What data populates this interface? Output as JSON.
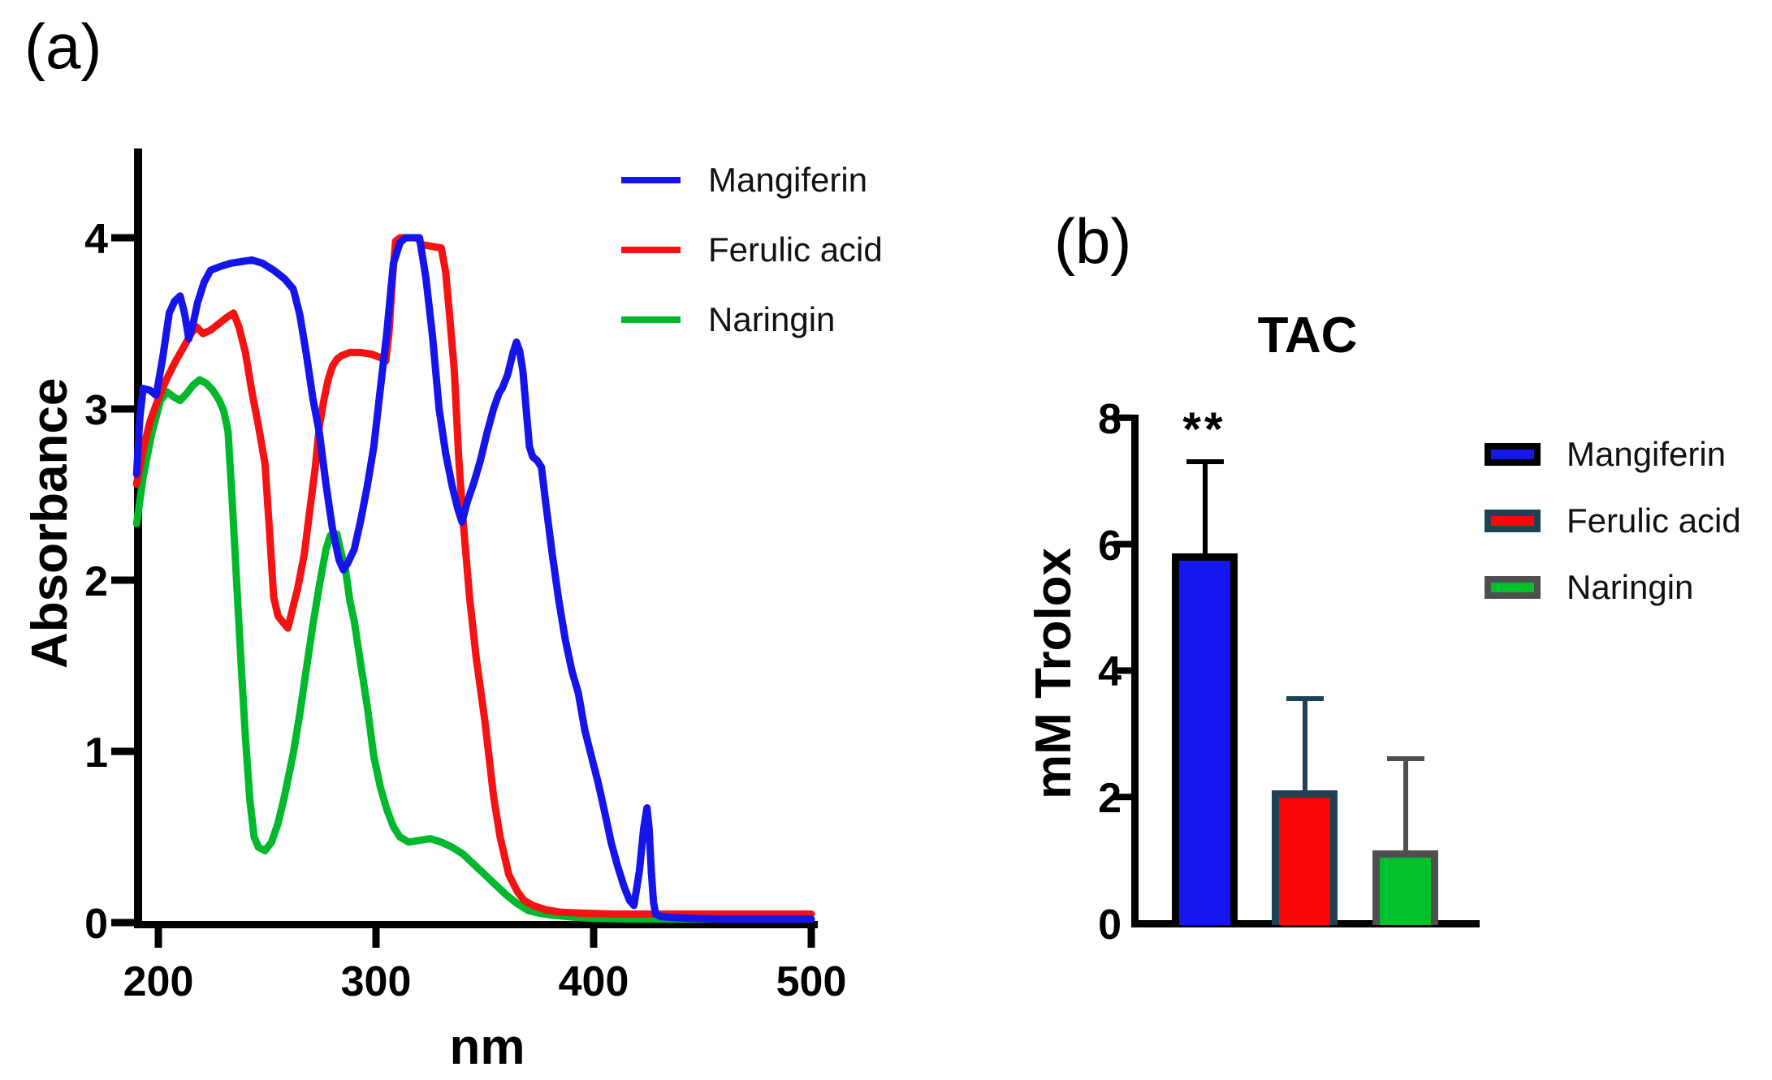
{
  "figure": {
    "panel_a_label": "(a)",
    "panel_b_label": "(b)"
  },
  "chart_data": [
    {
      "type": "line",
      "panel": "a",
      "title": "",
      "xlabel": "nm",
      "ylabel": "Absorbance",
      "xlim": [
        186,
        505
      ],
      "ylim": [
        0,
        4.55
      ],
      "x_ticks": [
        200,
        300,
        400,
        500
      ],
      "y_ticks": [
        0,
        1,
        2,
        3,
        4
      ],
      "grid": false,
      "legend_position": "outside-top-right",
      "series": [
        {
          "name": "Naringin",
          "color": "#00b82b",
          "points": [
            [
              190,
              2.33
            ],
            [
              193,
              2.6
            ],
            [
              197,
              2.86
            ],
            [
              201,
              3.05
            ],
            [
              204,
              3.1
            ],
            [
              207,
              3.07
            ],
            [
              210,
              3.05
            ],
            [
              213,
              3.09
            ],
            [
              216,
              3.14
            ],
            [
              219,
              3.17
            ],
            [
              222,
              3.15
            ],
            [
              225,
              3.11
            ],
            [
              228,
              3.05
            ],
            [
              230,
              2.99
            ],
            [
              232,
              2.87
            ],
            [
              234,
              2.45
            ],
            [
              236,
              1.98
            ],
            [
              238,
              1.52
            ],
            [
              240,
              1.08
            ],
            [
              242,
              0.72
            ],
            [
              244,
              0.5
            ],
            [
              246,
              0.44
            ],
            [
              249,
              0.42
            ],
            [
              252,
              0.47
            ],
            [
              255,
              0.58
            ],
            [
              258,
              0.74
            ],
            [
              262,
              0.99
            ],
            [
              265,
              1.22
            ],
            [
              268,
              1.48
            ],
            [
              271,
              1.74
            ],
            [
              274,
              1.97
            ],
            [
              277,
              2.18
            ],
            [
              279,
              2.26
            ],
            [
              282,
              2.27
            ],
            [
              284,
              2.16
            ],
            [
              286,
              2.06
            ],
            [
              288,
              1.88
            ],
            [
              290,
              1.76
            ],
            [
              293,
              1.51
            ],
            [
              296,
              1.26
            ],
            [
              299,
              0.97
            ],
            [
              302,
              0.79
            ],
            [
              305,
              0.66
            ],
            [
              308,
              0.56
            ],
            [
              311,
              0.5
            ],
            [
              315,
              0.47
            ],
            [
              320,
              0.48
            ],
            [
              325,
              0.49
            ],
            [
              330,
              0.47
            ],
            [
              335,
              0.44
            ],
            [
              340,
              0.4
            ],
            [
              345,
              0.34
            ],
            [
              350,
              0.28
            ],
            [
              355,
              0.22
            ],
            [
              360,
              0.16
            ],
            [
              365,
              0.11
            ],
            [
              370,
              0.07
            ],
            [
              375,
              0.055
            ],
            [
              380,
              0.045
            ],
            [
              390,
              0.032
            ],
            [
              400,
              0.025
            ],
            [
              420,
              0.02
            ],
            [
              450,
              0.02
            ],
            [
              500,
              0.02
            ]
          ]
        },
        {
          "name": "Ferulic acid",
          "color": "#f51212",
          "points": [
            [
              190,
              2.56
            ],
            [
              193,
              2.76
            ],
            [
              196,
              2.92
            ],
            [
              200,
              3.06
            ],
            [
              204,
              3.18
            ],
            [
              208,
              3.28
            ],
            [
              212,
              3.37
            ],
            [
              215,
              3.44
            ],
            [
              217.5,
              3.48
            ],
            [
              220.5,
              3.44
            ],
            [
              224,
              3.46
            ],
            [
              228,
              3.5
            ],
            [
              232,
              3.54
            ],
            [
              234.5,
              3.56
            ],
            [
              237,
              3.48
            ],
            [
              240,
              3.33
            ],
            [
              243,
              3.1
            ],
            [
              246,
              2.9
            ],
            [
              249,
              2.68
            ],
            [
              251,
              2.3
            ],
            [
              253,
              1.9
            ],
            [
              255,
              1.79
            ],
            [
              257.5,
              1.75
            ],
            [
              259.5,
              1.72
            ],
            [
              262,
              1.85
            ],
            [
              264,
              1.95
            ],
            [
              267,
              2.15
            ],
            [
              270,
              2.45
            ],
            [
              272,
              2.65
            ],
            [
              274,
              2.9
            ],
            [
              276,
              3.05
            ],
            [
              278,
              3.17
            ],
            [
              280,
              3.25
            ],
            [
              282,
              3.29
            ],
            [
              284,
              3.31
            ],
            [
              288,
              3.33
            ],
            [
              293,
              3.33
            ],
            [
              298,
              3.32
            ],
            [
              302,
              3.3
            ],
            [
              304.5,
              3.28
            ],
            [
              306,
              3.45
            ],
            [
              307.5,
              3.75
            ],
            [
              309,
              3.98
            ],
            [
              311,
              4.0
            ],
            [
              319,
              4.0
            ],
            [
              321,
              3.96
            ],
            [
              330,
              3.94
            ],
            [
              332,
              3.8
            ],
            [
              334,
              3.52
            ],
            [
              336,
              3.22
            ],
            [
              338,
              2.72
            ],
            [
              340,
              2.35
            ],
            [
              343,
              1.9
            ],
            [
              346,
              1.55
            ],
            [
              350,
              1.18
            ],
            [
              354,
              0.74
            ],
            [
              357,
              0.5
            ],
            [
              361,
              0.28
            ],
            [
              365,
              0.18
            ],
            [
              368,
              0.13
            ],
            [
              372,
              0.1
            ],
            [
              378,
              0.075
            ],
            [
              385,
              0.06
            ],
            [
              395,
              0.055
            ],
            [
              410,
              0.05
            ],
            [
              440,
              0.05
            ],
            [
              470,
              0.05
            ],
            [
              500,
              0.05
            ]
          ]
        },
        {
          "name": "Mangiferin",
          "color": "#1414eb",
          "points": [
            [
              190,
              2.62
            ],
            [
              191.5,
              2.95
            ],
            [
              193,
              3.12
            ],
            [
              196,
              3.11
            ],
            [
              199,
              3.08
            ],
            [
              202,
              3.3
            ],
            [
              205,
              3.56
            ],
            [
              207.5,
              3.63
            ],
            [
              210,
              3.66
            ],
            [
              212,
              3.56
            ],
            [
              214,
              3.41
            ],
            [
              216,
              3.5
            ],
            [
              218,
              3.62
            ],
            [
              221,
              3.74
            ],
            [
              224,
              3.81
            ],
            [
              228,
              3.83
            ],
            [
              233,
              3.85
            ],
            [
              238,
              3.86
            ],
            [
              243,
              3.87
            ],
            [
              248,
              3.85
            ],
            [
              253,
              3.81
            ],
            [
              258,
              3.76
            ],
            [
              262,
              3.7
            ],
            [
              265,
              3.55
            ],
            [
              268,
              3.32
            ],
            [
              271,
              3.06
            ],
            [
              274,
              2.86
            ],
            [
              277,
              2.56
            ],
            [
              280,
              2.3
            ],
            [
              283,
              2.12
            ],
            [
              285,
              2.06
            ],
            [
              287,
              2.1
            ],
            [
              290,
              2.18
            ],
            [
              293,
              2.35
            ],
            [
              296,
              2.55
            ],
            [
              299,
              2.78
            ],
            [
              302,
              3.12
            ],
            [
              305,
              3.45
            ],
            [
              308,
              3.85
            ],
            [
              311,
              3.97
            ],
            [
              313.5,
              4.0
            ],
            [
              320,
              4.0
            ],
            [
              323,
              3.76
            ],
            [
              326,
              3.42
            ],
            [
              329,
              3.0
            ],
            [
              332,
              2.74
            ],
            [
              335,
              2.55
            ],
            [
              337.5,
              2.42
            ],
            [
              339.5,
              2.34
            ],
            [
              342,
              2.46
            ],
            [
              345,
              2.57
            ],
            [
              348,
              2.7
            ],
            [
              351,
              2.86
            ],
            [
              354,
              3.0
            ],
            [
              356.5,
              3.09
            ],
            [
              358,
              3.12
            ],
            [
              360.5,
              3.2
            ],
            [
              363,
              3.33
            ],
            [
              364.5,
              3.39
            ],
            [
              366,
              3.34
            ],
            [
              367.5,
              3.22
            ],
            [
              369,
              3.0
            ],
            [
              370.5,
              2.78
            ],
            [
              372,
              2.72
            ],
            [
              374,
              2.7
            ],
            [
              376,
              2.66
            ],
            [
              378,
              2.45
            ],
            [
              381,
              2.15
            ],
            [
              384,
              1.88
            ],
            [
              387,
              1.65
            ],
            [
              390,
              1.47
            ],
            [
              393,
              1.34
            ],
            [
              396,
              1.12
            ],
            [
              399,
              0.97
            ],
            [
              402,
              0.82
            ],
            [
              405,
              0.65
            ],
            [
              408,
              0.47
            ],
            [
              411,
              0.33
            ],
            [
              414,
              0.21
            ],
            [
              416.5,
              0.13
            ],
            [
              418.5,
              0.1
            ],
            [
              421,
              0.3
            ],
            [
              423,
              0.55
            ],
            [
              424.5,
              0.67
            ],
            [
              425.5,
              0.55
            ],
            [
              426.5,
              0.3
            ],
            [
              427.5,
              0.12
            ],
            [
              428.5,
              0.05
            ],
            [
              431,
              0.035
            ],
            [
              436,
              0.03
            ],
            [
              445,
              0.025
            ],
            [
              460,
              0.02
            ],
            [
              480,
              0.02
            ],
            [
              500,
              0.02
            ]
          ]
        }
      ],
      "legend": [
        {
          "name": "Mangiferin",
          "color": "#1414eb"
        },
        {
          "name": "Ferulic acid",
          "color": "#f51212"
        },
        {
          "name": "Naringin",
          "color": "#00b82b"
        }
      ]
    },
    {
      "type": "bar",
      "panel": "b",
      "title": "TAC",
      "xlabel": "",
      "ylabel": "mM Trolox",
      "ylim": [
        0,
        8
      ],
      "y_ticks": [
        0,
        2,
        4,
        6,
        8
      ],
      "grid": false,
      "categories": [
        "Mangiferin",
        "Ferulic acid",
        "Naringin"
      ],
      "values": [
        5.85,
        2.1,
        1.15
      ],
      "error_top": [
        7.3,
        3.55,
        2.6
      ],
      "significance": {
        "label": "**",
        "category": "Mangiferin"
      },
      "bars": [
        {
          "name": "Mangiferin",
          "fill": "#1616f0",
          "border": "#000000",
          "value": 5.85,
          "error_top": 7.3
        },
        {
          "name": "Ferulic acid",
          "fill": "#fb0606",
          "border": "#1d4254",
          "value": 2.1,
          "error_top": 3.55
        },
        {
          "name": "Naringin",
          "fill": "#00c02c",
          "border": "#4f4f4f",
          "value": 1.15,
          "error_top": 2.6
        }
      ]
    }
  ]
}
